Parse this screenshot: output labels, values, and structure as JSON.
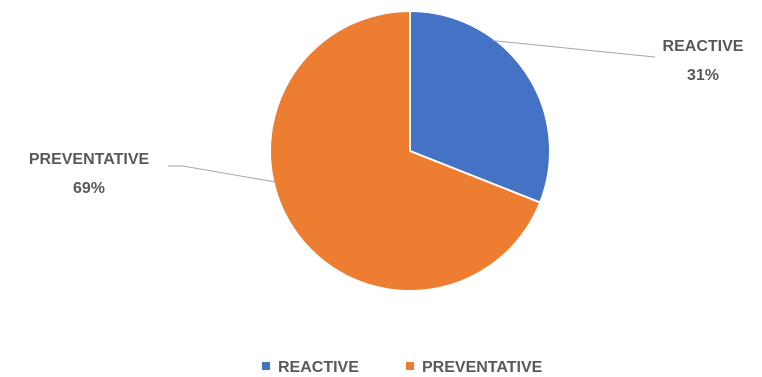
{
  "chart_data": {
    "type": "pie",
    "title": "",
    "slices": [
      {
        "name": "REACTIVE",
        "value": 31,
        "label": "31%",
        "color": "#4472C4"
      },
      {
        "name": "PREVENTATIVE",
        "value": 69,
        "label": "69%",
        "color": "#ED7D31"
      }
    ],
    "legend": {
      "placement": "bottom",
      "entries": [
        "REACTIVE",
        "PREVENTATIVE"
      ]
    },
    "start_angle": "12 o'clock",
    "direction": "clockwise",
    "slice_border_color": "#ffffff",
    "leader_line_color": "#A6A6A6",
    "label_color": "#595959"
  }
}
